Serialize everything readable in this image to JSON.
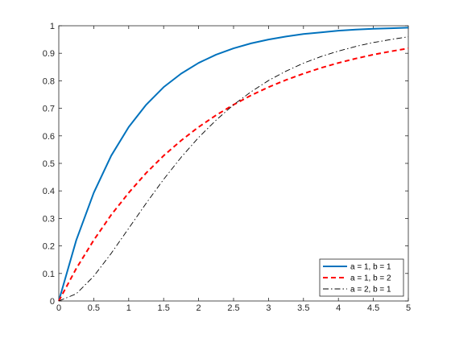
{
  "chart_data": {
    "type": "line",
    "title": "",
    "xlabel": "",
    "ylabel": "",
    "xlim": [
      0,
      5
    ],
    "ylim": [
      0,
      1
    ],
    "x_ticks": [
      0,
      0.5,
      1,
      1.5,
      2,
      2.5,
      3,
      3.5,
      4,
      4.5,
      5
    ],
    "x_tick_labels": [
      "0",
      "0.5",
      "1",
      "1.5",
      "2",
      "2.5",
      "3",
      "3.5",
      "4",
      "4.5",
      "5"
    ],
    "y_ticks": [
      0,
      0.1,
      0.2,
      0.3,
      0.4,
      0.5,
      0.6,
      0.7,
      0.8,
      0.9,
      1
    ],
    "y_tick_labels": [
      "0",
      "0.1",
      "0.2",
      "0.3",
      "0.4",
      "0.5",
      "0.6",
      "0.7",
      "0.8",
      "0.9",
      "1"
    ],
    "grid": false,
    "legend_position": "bottom-right",
    "series": [
      {
        "name": "a = 1, b = 1",
        "color": "#0072BD",
        "line_style": "solid",
        "x": [
          0,
          0.25,
          0.5,
          0.75,
          1,
          1.25,
          1.5,
          1.75,
          2,
          2.25,
          2.5,
          2.75,
          3,
          3.25,
          3.5,
          3.75,
          4,
          4.25,
          4.5,
          4.75,
          5
        ],
        "y": [
          0,
          0.221,
          0.393,
          0.528,
          0.632,
          0.713,
          0.777,
          0.826,
          0.865,
          0.895,
          0.918,
          0.936,
          0.95,
          0.961,
          0.97,
          0.976,
          0.982,
          0.986,
          0.989,
          0.991,
          0.993
        ]
      },
      {
        "name": "a = 1, b = 2",
        "color": "#FF0000",
        "line_style": "dashed",
        "x": [
          0,
          0.25,
          0.5,
          0.75,
          1,
          1.25,
          1.5,
          1.75,
          2,
          2.25,
          2.5,
          2.75,
          3,
          3.25,
          3.5,
          3.75,
          4,
          4.25,
          4.5,
          4.75,
          5
        ],
        "y": [
          0,
          0.118,
          0.221,
          0.313,
          0.393,
          0.465,
          0.528,
          0.583,
          0.632,
          0.675,
          0.713,
          0.747,
          0.777,
          0.803,
          0.826,
          0.847,
          0.865,
          0.881,
          0.895,
          0.907,
          0.918
        ]
      },
      {
        "name": "a = 2, b = 1",
        "color": "#000000",
        "line_style": "dash-dot",
        "x": [
          0,
          0.25,
          0.5,
          0.75,
          1,
          1.25,
          1.5,
          1.75,
          2,
          2.25,
          2.5,
          2.75,
          3,
          3.25,
          3.5,
          3.75,
          4,
          4.25,
          4.5,
          4.75,
          5
        ],
        "y": [
          0,
          0.026,
          0.09,
          0.173,
          0.264,
          0.355,
          0.442,
          0.522,
          0.594,
          0.657,
          0.713,
          0.76,
          0.801,
          0.835,
          0.864,
          0.888,
          0.908,
          0.925,
          0.939,
          0.95,
          0.96
        ]
      }
    ]
  }
}
